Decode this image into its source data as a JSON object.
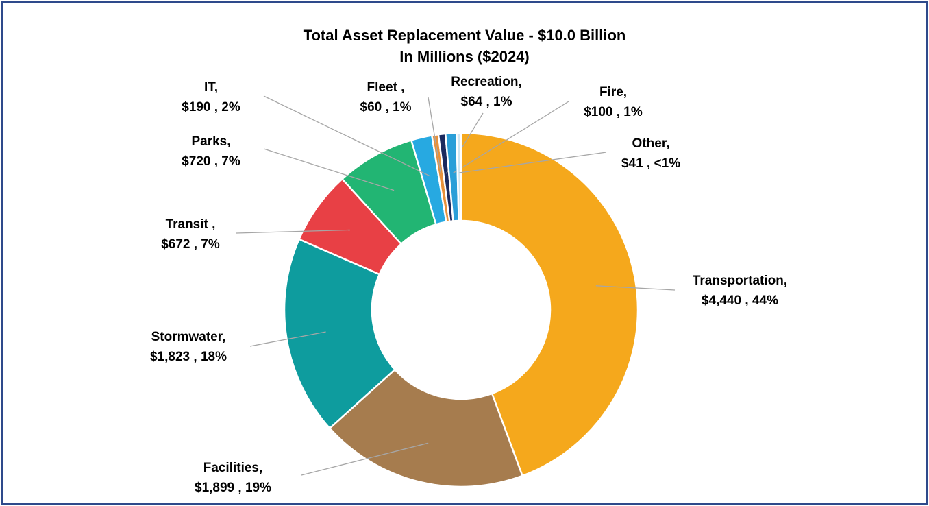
{
  "chart_data": {
    "type": "pie",
    "title": "Total Asset Replacement Value - $10.0 Billion",
    "subtitle": "In Millions ($2024)",
    "categories": [
      "Transportation,",
      "Facilities,",
      "Stormwater,",
      "Transit ,",
      "Parks,",
      "IT,",
      "Fleet ,",
      "Recreation,",
      "Fire,",
      "Other,"
    ],
    "values": [
      4440,
      1899,
      1823,
      672,
      720,
      190,
      60,
      64,
      100,
      41
    ],
    "value_labels": [
      "$4,440 , 44%",
      "$1,899 , 19%",
      "$1,823 , 18%",
      "$672 , 7%",
      "$720 , 7%",
      "$190 , 2%",
      "$60 , 1%",
      "$64 , 1%",
      "$100 , 1%",
      "$41 , <1%"
    ],
    "colors": [
      "#F5A81C",
      "#A67C4E",
      "#0E9C9E",
      "#E84045",
      "#22B573",
      "#27A9E1",
      "#E8913A",
      "#1B2A5E",
      "#2A9FD8",
      "#CFE6F2"
    ]
  }
}
